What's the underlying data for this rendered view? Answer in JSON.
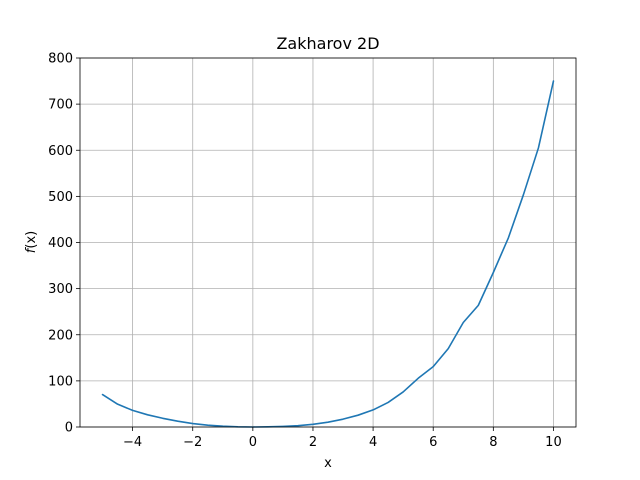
{
  "chart_data": {
    "type": "line",
    "title": "Zakharov 2D",
    "xlabel": "x",
    "ylabel_f": "f",
    "ylabel_x": "(x)",
    "xlim": [
      -5.75,
      10.75
    ],
    "ylim": [
      0,
      800
    ],
    "xticks": [
      -4,
      -2,
      0,
      2,
      4,
      6,
      8,
      10
    ],
    "xtick_labels": [
      "−4",
      "−2",
      "0",
      "2",
      "4",
      "6",
      "8",
      "10"
    ],
    "yticks": [
      0,
      100,
      200,
      300,
      400,
      500,
      600,
      700,
      800
    ],
    "ytick_labels": [
      "0",
      "100",
      "200",
      "300",
      "400",
      "500",
      "600",
      "700",
      "800"
    ],
    "grid": true,
    "series": [
      {
        "color": "#1f77b4",
        "x": [
          -5,
          -4.5,
          -4,
          -3.5,
          -3,
          -2.5,
          -2,
          -1.5,
          -1,
          -0.5,
          0,
          0.5,
          1,
          1.5,
          2,
          2.5,
          3,
          3.5,
          4,
          4.5,
          5,
          5.5,
          6,
          6.5,
          7,
          7.5,
          8,
          8.5,
          9,
          9.5,
          10
        ],
        "y": [
          70.3,
          49.5,
          36.0,
          26.4,
          18.9,
          12.6,
          7.4,
          3.9,
          1.7,
          0.4,
          0,
          0.3,
          1.3,
          2.9,
          5.9,
          10.5,
          17.0,
          25.6,
          37.0,
          53.3,
          76.0,
          105.6,
          131.0,
          170.0,
          226.6,
          263.7,
          335.0,
          410.0,
          503.4,
          605.0,
          750.0
        ]
      }
    ]
  }
}
